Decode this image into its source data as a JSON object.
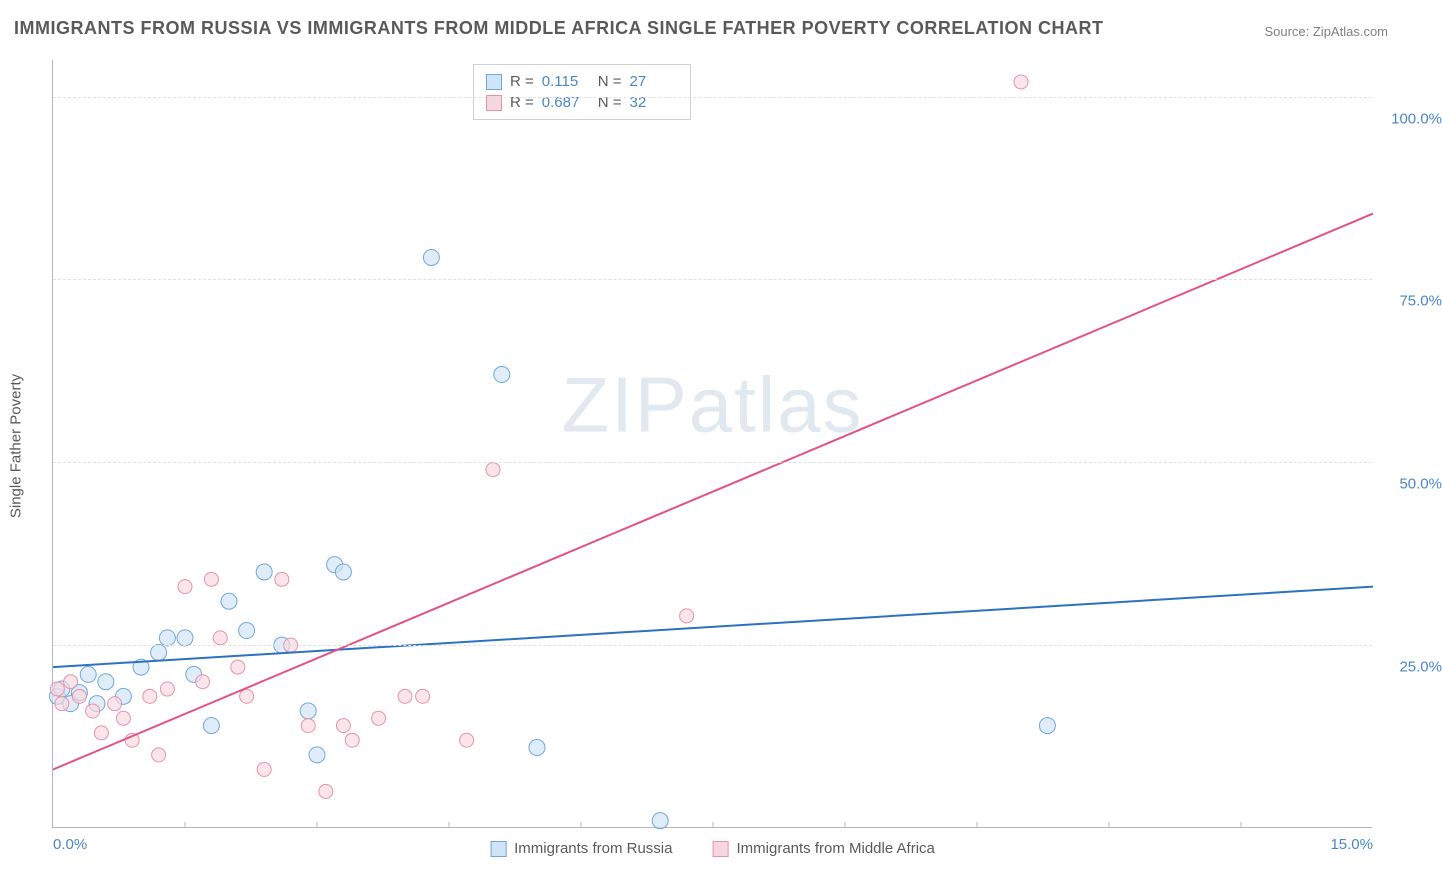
{
  "title": "IMMIGRANTS FROM RUSSIA VS IMMIGRANTS FROM MIDDLE AFRICA SINGLE FATHER POVERTY CORRELATION CHART",
  "source": "Source: ZipAtlas.com",
  "watermark": "ZIPatlas",
  "ylabel": "Single Father Poverty",
  "chart": {
    "type": "scatter",
    "xlim": [
      0,
      15
    ],
    "ylim": [
      0,
      105
    ],
    "xticks": [
      0,
      5,
      10,
      15
    ],
    "xtick_labels": [
      "0.0%",
      "",
      "",
      "15.0%"
    ],
    "xtick_minors": [
      1.5,
      3.0,
      4.5,
      6.0,
      7.5,
      9.0,
      10.5,
      12.0,
      13.5
    ],
    "yticks": [
      25,
      50,
      75,
      100
    ],
    "ytick_labels": [
      "25.0%",
      "50.0%",
      "75.0%",
      "100.0%"
    ],
    "grid_color": "#e0e0e0",
    "background_color": "#ffffff",
    "axis_color": "#b5b5b5",
    "label_color": "#4a86c7",
    "title_color": "#5a5a5a",
    "title_fontsize": 18,
    "label_fontsize": 15
  },
  "series": [
    {
      "name": "Immigrants from Russia",
      "label": "Immigrants from Russia",
      "fill": "#cfe4f5",
      "stroke": "#6fa8d8",
      "marker_radius": 8,
      "fill_opacity": 0.65,
      "R": "0.115",
      "N": "27",
      "trend": {
        "x1": 0,
        "y1": 22,
        "x2": 15,
        "y2": 33,
        "color": "#2d72c2",
        "width": 2
      },
      "points": [
        [
          0.05,
          18
        ],
        [
          0.1,
          19
        ],
        [
          0.2,
          17
        ],
        [
          0.3,
          18.5
        ],
        [
          0.4,
          21
        ],
        [
          0.5,
          17
        ],
        [
          0.6,
          20
        ],
        [
          0.8,
          18
        ],
        [
          1.0,
          22
        ],
        [
          1.2,
          24
        ],
        [
          1.3,
          26
        ],
        [
          1.5,
          26
        ],
        [
          1.6,
          21
        ],
        [
          1.8,
          14
        ],
        [
          2.0,
          31
        ],
        [
          2.2,
          27
        ],
        [
          2.4,
          35
        ],
        [
          2.6,
          25
        ],
        [
          2.9,
          16
        ],
        [
          3.0,
          10
        ],
        [
          3.2,
          36
        ],
        [
          3.3,
          35
        ],
        [
          4.3,
          78
        ],
        [
          5.1,
          62
        ],
        [
          5.5,
          11
        ],
        [
          6.9,
          1
        ],
        [
          11.3,
          14
        ]
      ]
    },
    {
      "name": "Immigrants from Middle Africa",
      "label": "Immigrants from Middle Africa",
      "fill": "#f7d7df",
      "stroke": "#e593ab",
      "marker_radius": 7,
      "fill_opacity": 0.65,
      "R": "0.687",
      "N": "32",
      "trend": {
        "x1": 0,
        "y1": 8,
        "x2": 15,
        "y2": 84,
        "color": "#e15384",
        "width": 2
      },
      "points": [
        [
          0.05,
          19
        ],
        [
          0.1,
          17
        ],
        [
          0.2,
          20
        ],
        [
          0.3,
          18
        ],
        [
          0.45,
          16
        ],
        [
          0.55,
          13
        ],
        [
          0.7,
          17
        ],
        [
          0.8,
          15
        ],
        [
          0.9,
          12
        ],
        [
          1.1,
          18
        ],
        [
          1.2,
          10
        ],
        [
          1.3,
          19
        ],
        [
          1.5,
          33
        ],
        [
          1.7,
          20
        ],
        [
          1.8,
          34
        ],
        [
          1.9,
          26
        ],
        [
          2.1,
          22
        ],
        [
          2.2,
          18
        ],
        [
          2.4,
          8
        ],
        [
          2.6,
          34
        ],
        [
          2.7,
          25
        ],
        [
          2.9,
          14
        ],
        [
          3.1,
          5
        ],
        [
          3.3,
          14
        ],
        [
          3.4,
          12
        ],
        [
          3.7,
          15
        ],
        [
          4.0,
          18
        ],
        [
          4.2,
          18
        ],
        [
          4.7,
          12
        ],
        [
          5.0,
          49
        ],
        [
          7.2,
          29
        ],
        [
          11.0,
          102
        ]
      ]
    }
  ],
  "stats_labels": {
    "R": "R =",
    "N": "N ="
  },
  "legend_swatch_size": 16
}
